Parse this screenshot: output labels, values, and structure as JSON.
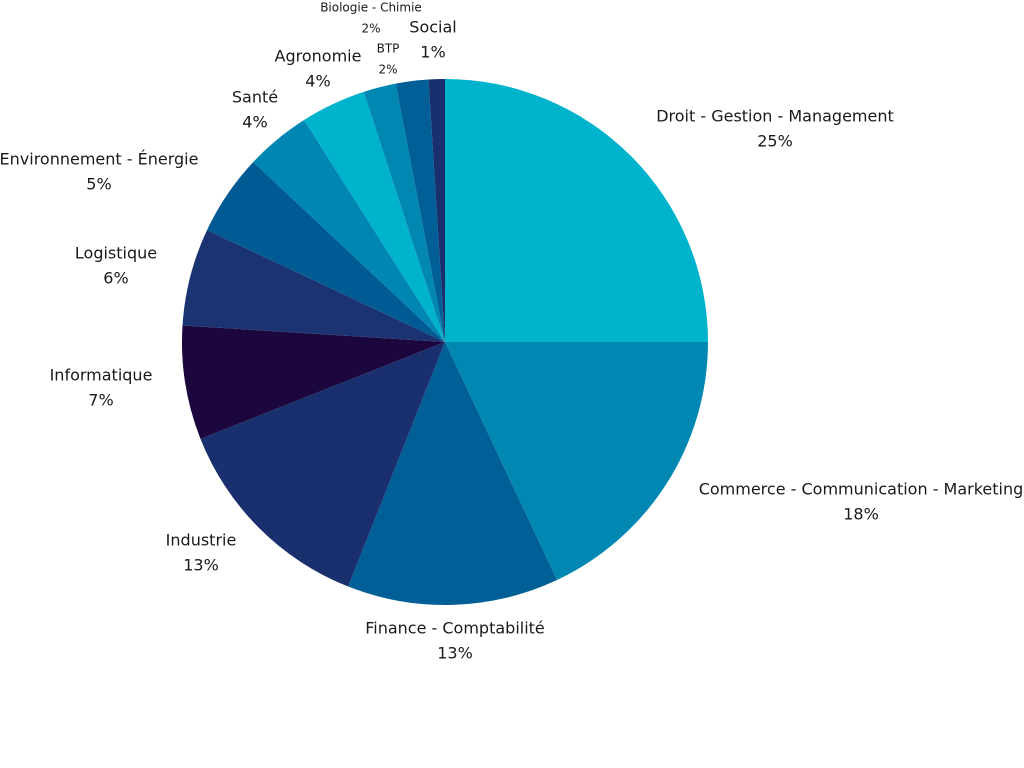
{
  "chart_data": {
    "type": "pie",
    "title": "",
    "start_angle_deg": 0,
    "direction": "clockwise",
    "slices": [
      {
        "label": "Droit - Gestion - Management",
        "value": 25,
        "value_label": "25%",
        "color": "#00B3CC"
      },
      {
        "label": "Commerce - Communication - Marketing",
        "value": 18,
        "value_label": "18%",
        "color": "#0088B3"
      },
      {
        "label": "Finance - Comptabilité",
        "value": 13,
        "value_label": "13%",
        "color": "#005F96"
      },
      {
        "label": "Industrie",
        "value": 13,
        "value_label": "13%",
        "color": "#1A2F6E"
      },
      {
        "label": "Informatique",
        "value": 7,
        "value_label": "7%",
        "color": "#1B073D"
      },
      {
        "label": "Logistique",
        "value": 6,
        "value_label": "6%",
        "color": "#1B3370"
      },
      {
        "label": "Environnement - Énergie",
        "value": 5,
        "value_label": "5%",
        "color": "#005A94"
      },
      {
        "label": "Santé",
        "value": 4,
        "value_label": "4%",
        "color": "#0086B2"
      },
      {
        "label": "Agronomie",
        "value": 4,
        "value_label": "4%",
        "color": "#00B3CC"
      },
      {
        "label": "BTP",
        "value": 2,
        "value_label": "2%",
        "color": "#0088B3"
      },
      {
        "label": "Biologie - Chimie",
        "value": 2,
        "value_label": "2%",
        "color": "#005F96"
      },
      {
        "label": "Social",
        "value": 1,
        "value_label": "1%",
        "color": "#1A2F6E"
      }
    ]
  }
}
